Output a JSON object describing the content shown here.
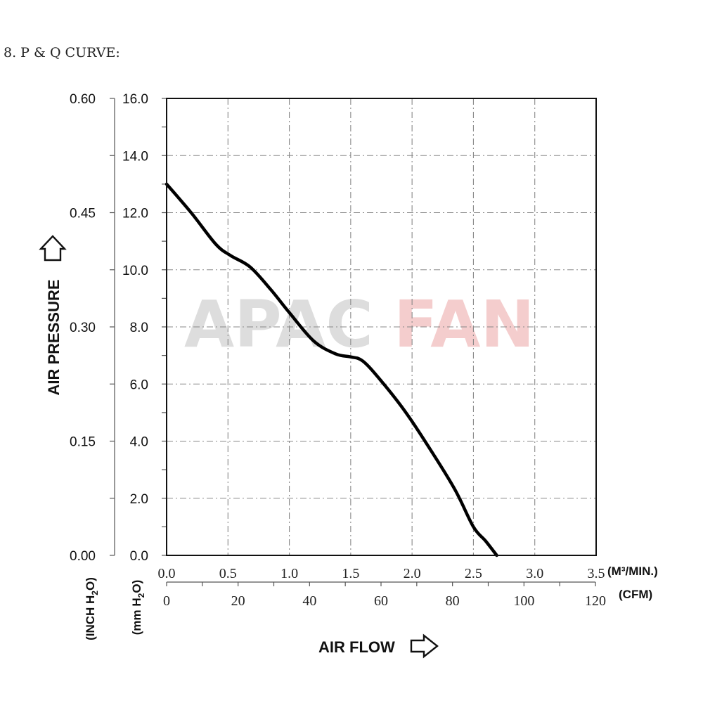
{
  "heading": "8. P & Q CURVE:",
  "watermark": {
    "part1": "APAC",
    "part2": "FAN",
    "color1": "#9a9a9a",
    "color2": "#e06a6a"
  },
  "labels": {
    "air_pressure": "AIR PRESSURE",
    "air_flow": "AIR FLOW",
    "inch_unit": {
      "pre": "(INCH H",
      "sub": "2",
      "post": "O)"
    },
    "mm_unit": {
      "pre": "(mm H",
      "sub": "2",
      "post": "O)"
    },
    "m3_unit": "(M³/MIN.)",
    "cfm_unit": "(CFM)"
  },
  "chart_data": {
    "type": "line",
    "x_m3min_ticks": [
      "0.0",
      "0.5",
      "1.0",
      "1.5",
      "2.0",
      "2.5",
      "3.0",
      "3.5"
    ],
    "x_cfm_ticks": [
      "0",
      "20",
      "40",
      "60",
      "80",
      "100",
      "120"
    ],
    "y_mmh2o_ticks": [
      "0.0",
      "2.0",
      "4.0",
      "6.0",
      "8.0",
      "10.0",
      "12.0",
      "14.0",
      "16.0"
    ],
    "y_inch_ticks": [
      "0.00",
      "0.15",
      "0.30",
      "0.45",
      "0.60"
    ],
    "xlim_m3min": [
      0,
      3.5
    ],
    "xlim_cfm": [
      0,
      120
    ],
    "ylim_mmh2o": [
      0,
      16
    ],
    "ylim_inch": [
      0,
      0.6
    ],
    "grid": true,
    "series": [
      {
        "x_m3min": [
          0.0,
          0.2,
          0.4,
          0.52,
          0.68,
          0.85,
          1.0,
          1.2,
          1.38,
          1.5,
          1.6,
          1.75,
          1.95,
          2.15,
          2.35,
          2.5,
          2.6,
          2.69
        ],
        "y_mmh2o": [
          13.0,
          12.0,
          10.9,
          10.5,
          10.1,
          9.3,
          8.5,
          7.5,
          7.05,
          6.95,
          6.8,
          6.1,
          5.0,
          3.7,
          2.3,
          1.0,
          0.5,
          0.0
        ]
      }
    ]
  }
}
